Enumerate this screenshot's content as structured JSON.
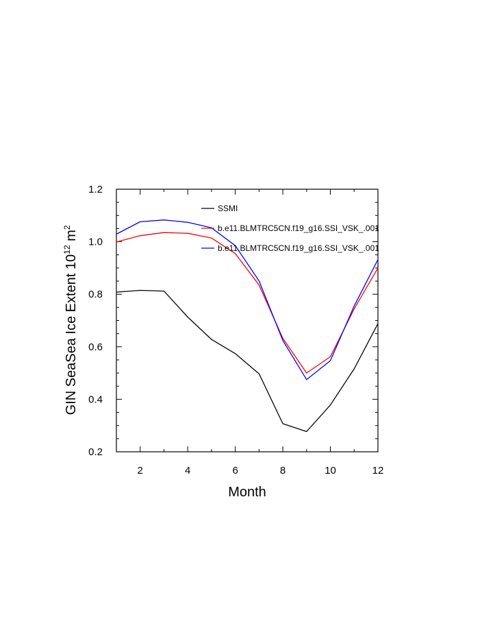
{
  "chart_data": {
    "type": "line",
    "x": [
      1,
      2,
      3,
      4,
      5,
      6,
      7,
      8,
      9,
      10,
      11,
      12
    ],
    "xlim": [
      1,
      12
    ],
    "ylim": [
      0.2,
      1.2
    ],
    "xticks": [
      2,
      4,
      6,
      8,
      10,
      12
    ],
    "xtick_labels": [
      "2",
      "4",
      "6",
      "8",
      "10",
      "12"
    ],
    "yticks": [
      0.2,
      0.4,
      0.6,
      0.8,
      1.0,
      1.2
    ],
    "ytick_labels": [
      "0.2",
      "0.4",
      "0.6",
      "0.8",
      "1.0",
      "1.2"
    ],
    "xlabel": "Month",
    "ylabel": {
      "main": "GIN SeaSea Ice Extent 10",
      "sup": "12",
      "unit": " m",
      "unit_sup": "2"
    },
    "grid": false,
    "legend_position": "top-right",
    "series": [
      {
        "name": "SSMI",
        "color": "#000000",
        "values": [
          0.808,
          0.815,
          0.812,
          0.713,
          0.628,
          0.574,
          0.497,
          0.307,
          0.277,
          0.378,
          0.516,
          0.688
        ]
      },
      {
        "name": "b.e11.BLMTRC5CN.f19_g16.SSI_VSK_.001",
        "color": "#ff0000",
        "values": [
          0.999,
          1.023,
          1.035,
          1.032,
          1.014,
          0.955,
          0.835,
          0.632,
          0.5,
          0.562,
          0.744,
          0.9
        ]
      },
      {
        "name": "b.e11.BLMTRC5CN.f19_g16.SSI_VSK_.001",
        "color": "#0000ff",
        "values": [
          1.029,
          1.076,
          1.083,
          1.074,
          1.053,
          0.985,
          0.851,
          0.624,
          0.475,
          0.547,
          0.755,
          0.932
        ]
      }
    ]
  }
}
